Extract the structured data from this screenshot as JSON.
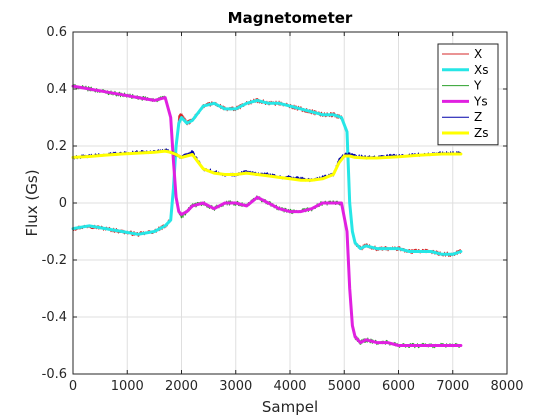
{
  "chart_data": {
    "type": "line",
    "title": "Magnetometer",
    "xlabel": "Sampel",
    "ylabel": "Flux (Gs)",
    "xlim": [
      0,
      8000
    ],
    "ylim": [
      -0.6,
      0.6
    ],
    "xticks": [
      0,
      1000,
      2000,
      3000,
      4000,
      5000,
      6000,
      7000,
      8000
    ],
    "xtick_labels": [
      "0",
      "1000",
      "2000",
      "3000",
      "4000",
      "5000",
      "6000",
      "7000",
      "8000"
    ],
    "yticks": [
      -0.6,
      -0.4,
      -0.2,
      0,
      0.2,
      0.4,
      0.6
    ],
    "ytick_labels": [
      "-0.6",
      "-0.4",
      "-0.2",
      "0",
      "0.2",
      "0.4",
      "0.6"
    ],
    "grid": true,
    "legend_position": "top-right",
    "series": [
      {
        "name": "X",
        "color": "#d62728",
        "width": 1,
        "noise": 0.008,
        "x": [
          0,
          300,
          600,
          900,
          1200,
          1500,
          1700,
          1800,
          1850,
          1900,
          1950,
          2000,
          2100,
          2200,
          2400,
          2600,
          2800,
          3000,
          3200,
          3400,
          3600,
          3800,
          4000,
          4200,
          4400,
          4600,
          4800,
          4950,
          5050,
          5100,
          5150,
          5200,
          5300,
          5400,
          5600,
          5800,
          6000,
          6200,
          6400,
          6600,
          6800,
          7000,
          7150
        ],
        "y": [
          -0.09,
          -0.08,
          -0.09,
          -0.1,
          -0.11,
          -0.1,
          -0.08,
          -0.06,
          0.05,
          0.2,
          0.3,
          0.31,
          0.28,
          0.29,
          0.34,
          0.35,
          0.33,
          0.33,
          0.35,
          0.36,
          0.35,
          0.35,
          0.34,
          0.33,
          0.32,
          0.31,
          0.31,
          0.3,
          0.25,
          0.0,
          -0.1,
          -0.14,
          -0.16,
          -0.15,
          -0.16,
          -0.16,
          -0.16,
          -0.17,
          -0.17,
          -0.17,
          -0.18,
          -0.18,
          -0.17
        ]
      },
      {
        "name": "Xs",
        "color": "#26e6e6",
        "width": 3,
        "noise": 0,
        "x": [
          0,
          300,
          600,
          900,
          1200,
          1500,
          1700,
          1800,
          1850,
          1900,
          1950,
          2000,
          2100,
          2200,
          2400,
          2600,
          2800,
          3000,
          3200,
          3400,
          3600,
          3800,
          4000,
          4200,
          4400,
          4600,
          4800,
          4950,
          5050,
          5100,
          5150,
          5200,
          5300,
          5400,
          5600,
          5800,
          6000,
          6200,
          6400,
          6600,
          6800,
          7000,
          7150
        ],
        "y": [
          -0.09,
          -0.08,
          -0.09,
          -0.1,
          -0.11,
          -0.1,
          -0.08,
          -0.06,
          0.05,
          0.2,
          0.28,
          0.3,
          0.28,
          0.29,
          0.34,
          0.35,
          0.33,
          0.33,
          0.35,
          0.36,
          0.35,
          0.35,
          0.34,
          0.33,
          0.32,
          0.31,
          0.31,
          0.3,
          0.25,
          0.0,
          -0.1,
          -0.14,
          -0.16,
          -0.15,
          -0.16,
          -0.16,
          -0.16,
          -0.17,
          -0.17,
          -0.17,
          -0.18,
          -0.18,
          -0.17
        ]
      },
      {
        "name": "Y",
        "color": "#2ca02c",
        "width": 1,
        "noise": 0.008,
        "x": [
          0,
          300,
          600,
          900,
          1200,
          1500,
          1700,
          1800,
          1850,
          1900,
          1950,
          2000,
          2100,
          2200,
          2400,
          2600,
          2800,
          3000,
          3200,
          3400,
          3600,
          3800,
          4000,
          4200,
          4400,
          4600,
          4800,
          4950,
          5050,
          5100,
          5150,
          5200,
          5250,
          5300,
          5400,
          5600,
          5800,
          6000,
          6400,
          6800,
          7150
        ],
        "y": [
          0.41,
          0.4,
          0.39,
          0.38,
          0.37,
          0.36,
          0.37,
          0.3,
          0.15,
          0.02,
          -0.03,
          -0.05,
          -0.03,
          -0.01,
          0.0,
          -0.02,
          0.0,
          0.0,
          -0.01,
          0.02,
          0.0,
          -0.02,
          -0.03,
          -0.03,
          -0.02,
          0.0,
          0.0,
          0.0,
          -0.1,
          -0.3,
          -0.43,
          -0.47,
          -0.48,
          -0.49,
          -0.48,
          -0.49,
          -0.49,
          -0.5,
          -0.5,
          -0.5,
          -0.5
        ]
      },
      {
        "name": "Ys",
        "color": "#e020e0",
        "width": 3,
        "noise": 0,
        "x": [
          0,
          300,
          600,
          900,
          1200,
          1500,
          1700,
          1800,
          1850,
          1900,
          1950,
          2000,
          2100,
          2200,
          2400,
          2600,
          2800,
          3000,
          3200,
          3400,
          3600,
          3800,
          4000,
          4200,
          4400,
          4600,
          4800,
          4950,
          5050,
          5100,
          5150,
          5200,
          5250,
          5300,
          5400,
          5600,
          5800,
          6000,
          6400,
          6800,
          7150
        ],
        "y": [
          0.41,
          0.4,
          0.39,
          0.38,
          0.37,
          0.36,
          0.37,
          0.3,
          0.15,
          0.02,
          -0.03,
          -0.04,
          -0.03,
          -0.01,
          0.0,
          -0.02,
          0.0,
          0.0,
          -0.01,
          0.02,
          0.0,
          -0.02,
          -0.03,
          -0.03,
          -0.02,
          0.0,
          0.0,
          0.0,
          -0.1,
          -0.3,
          -0.43,
          -0.47,
          -0.48,
          -0.49,
          -0.48,
          -0.49,
          -0.49,
          -0.5,
          -0.5,
          -0.5,
          -0.5
        ]
      },
      {
        "name": "Z",
        "color": "#0000aa",
        "width": 1,
        "noise": 0.006,
        "x": [
          0,
          300,
          600,
          900,
          1200,
          1500,
          1700,
          1800,
          1900,
          2000,
          2100,
          2200,
          2300,
          2400,
          2600,
          2800,
          3000,
          3200,
          3400,
          3600,
          3800,
          4000,
          4200,
          4400,
          4600,
          4800,
          4900,
          5000,
          5100,
          5200,
          5400,
          5600,
          5800,
          6000,
          6400,
          6800,
          7150
        ],
        "y": [
          0.16,
          0.165,
          0.17,
          0.175,
          0.178,
          0.18,
          0.185,
          0.18,
          0.17,
          0.16,
          0.17,
          0.18,
          0.15,
          0.12,
          0.11,
          0.1,
          0.1,
          0.11,
          0.1,
          0.1,
          0.09,
          0.09,
          0.085,
          0.08,
          0.09,
          0.1,
          0.15,
          0.17,
          0.17,
          0.165,
          0.16,
          0.16,
          0.165,
          0.165,
          0.17,
          0.175,
          0.175
        ]
      },
      {
        "name": "Zs",
        "color": "#ffff00",
        "width": 3,
        "noise": 0,
        "x": [
          0,
          300,
          600,
          900,
          1200,
          1500,
          1700,
          1800,
          1900,
          2000,
          2100,
          2200,
          2300,
          2400,
          2600,
          2800,
          3000,
          3200,
          3400,
          3600,
          3800,
          4000,
          4200,
          4400,
          4600,
          4800,
          4900,
          5000,
          5100,
          5200,
          5400,
          5600,
          5800,
          6000,
          6400,
          6800,
          7150
        ],
        "y": [
          0.16,
          0.163,
          0.168,
          0.172,
          0.175,
          0.178,
          0.182,
          0.178,
          0.17,
          0.16,
          0.165,
          0.17,
          0.145,
          0.12,
          0.105,
          0.1,
          0.1,
          0.105,
          0.1,
          0.095,
          0.09,
          0.085,
          0.08,
          0.08,
          0.085,
          0.1,
          0.14,
          0.165,
          0.165,
          0.16,
          0.158,
          0.158,
          0.16,
          0.162,
          0.168,
          0.172,
          0.172
        ]
      }
    ]
  }
}
